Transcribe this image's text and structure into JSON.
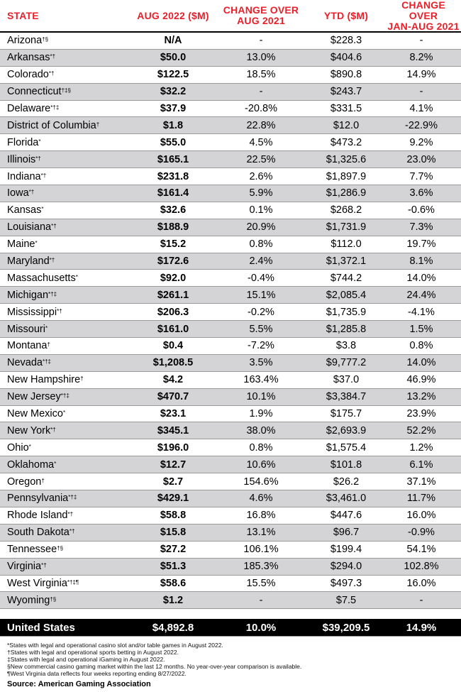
{
  "headers": {
    "state": "STATE",
    "aug": "AUG 2022 ($M)",
    "chg": "CHANGE OVER\nAUG 2021",
    "ytd": "YTD ($M)",
    "chgy": "CHANGE OVER\nJAN-AUG 2021"
  },
  "rows": [
    {
      "state": "Arizona",
      "sup": "†§",
      "aug": "N/A",
      "chg": "-",
      "ytd": "$228.3",
      "chgy": "-"
    },
    {
      "state": "Arkansas",
      "sup": "*†",
      "aug": "$50.0",
      "chg": "13.0%",
      "ytd": "$404.6",
      "chgy": "8.2%"
    },
    {
      "state": "Colorado",
      "sup": "*†",
      "aug": "$122.5",
      "chg": "18.5%",
      "ytd": "$890.8",
      "chgy": "14.9%"
    },
    {
      "state": "Connecticut",
      "sup": "†‡§",
      "aug": "$32.2",
      "chg": "-",
      "ytd": "$243.7",
      "chgy": "-"
    },
    {
      "state": "Delaware",
      "sup": "*†‡",
      "aug": "$37.9",
      "chg": "-20.8%",
      "ytd": "$331.5",
      "chgy": "4.1%"
    },
    {
      "state": "District of Columbia",
      "sup": "†",
      "aug": "$1.8",
      "chg": "22.8%",
      "ytd": "$12.0",
      "chgy": "-22.9%"
    },
    {
      "state": "Florida",
      "sup": "*",
      "aug": "$55.0",
      "chg": "4.5%",
      "ytd": "$473.2",
      "chgy": "9.2%"
    },
    {
      "state": "Illinois",
      "sup": "*†",
      "aug": "$165.1",
      "chg": "22.5%",
      "ytd": "$1,325.6",
      "chgy": "23.0%"
    },
    {
      "state": "Indiana",
      "sup": "*†",
      "aug": "$231.8",
      "chg": "2.6%",
      "ytd": "$1,897.9",
      "chgy": "7.7%"
    },
    {
      "state": "Iowa",
      "sup": "*†",
      "aug": "$161.4",
      "chg": "5.9%",
      "ytd": "$1,286.9",
      "chgy": "3.6%"
    },
    {
      "state": "Kansas",
      "sup": "*",
      "aug": "$32.6",
      "chg": "0.1%",
      "ytd": "$268.2",
      "chgy": "-0.6%"
    },
    {
      "state": "Louisiana",
      "sup": "*†",
      "aug": "$188.9",
      "chg": "20.9%",
      "ytd": "$1,731.9",
      "chgy": "7.3%"
    },
    {
      "state": "Maine",
      "sup": "*",
      "aug": "$15.2",
      "chg": "0.8%",
      "ytd": "$112.0",
      "chgy": "19.7%"
    },
    {
      "state": "Maryland",
      "sup": "*†",
      "aug": "$172.6",
      "chg": "2.4%",
      "ytd": "$1,372.1",
      "chgy": "8.1%"
    },
    {
      "state": "Massachusetts",
      "sup": "*",
      "aug": "$92.0",
      "chg": "-0.4%",
      "ytd": "$744.2",
      "chgy": "14.0%"
    },
    {
      "state": "Michigan",
      "sup": "*†‡",
      "aug": "$261.1",
      "chg": "15.1%",
      "ytd": "$2,085.4",
      "chgy": "24.4%"
    },
    {
      "state": "Mississippi",
      "sup": "*†",
      "aug": "$206.3",
      "chg": "-0.2%",
      "ytd": "$1,735.9",
      "chgy": "-4.1%"
    },
    {
      "state": "Missouri",
      "sup": "*",
      "aug": "$161.0",
      "chg": "5.5%",
      "ytd": "$1,285.8",
      "chgy": "1.5%"
    },
    {
      "state": "Montana",
      "sup": "†",
      "aug": "$0.4",
      "chg": "-7.2%",
      "ytd": "$3.8",
      "chgy": "0.8%"
    },
    {
      "state": "Nevada",
      "sup": "*†‡",
      "aug": "$1,208.5",
      "chg": "3.5%",
      "ytd": "$9,777.2",
      "chgy": "14.0%"
    },
    {
      "state": "New Hampshire",
      "sup": "†",
      "aug": "$4.2",
      "chg": "163.4%",
      "ytd": "$37.0",
      "chgy": "46.9%"
    },
    {
      "state": "New Jersey",
      "sup": "*†‡",
      "aug": "$470.7",
      "chg": "10.1%",
      "ytd": "$3,384.7",
      "chgy": "13.2%"
    },
    {
      "state": "New Mexico",
      "sup": "*",
      "aug": "$23.1",
      "chg": "1.9%",
      "ytd": "$175.7",
      "chgy": "23.9%"
    },
    {
      "state": "New York",
      "sup": "*†",
      "aug": "$345.1",
      "chg": "38.0%",
      "ytd": "$2,693.9",
      "chgy": "52.2%"
    },
    {
      "state": "Ohio",
      "sup": "*",
      "aug": "$196.0",
      "chg": "0.8%",
      "ytd": "$1,575.4",
      "chgy": "1.2%"
    },
    {
      "state": "Oklahoma",
      "sup": "*",
      "aug": "$12.7",
      "chg": "10.6%",
      "ytd": "$101.8",
      "chgy": "6.1%"
    },
    {
      "state": "Oregon",
      "sup": "†",
      "aug": "$2.7",
      "chg": "154.6%",
      "ytd": "$26.2",
      "chgy": "37.1%"
    },
    {
      "state": "Pennsylvania",
      "sup": "*†‡",
      "aug": "$429.1",
      "chg": "4.6%",
      "ytd": "$3,461.0",
      "chgy": "11.7%"
    },
    {
      "state": "Rhode Island",
      "sup": "*†",
      "aug": "$58.8",
      "chg": "16.8%",
      "ytd": "$447.6",
      "chgy": "16.0%"
    },
    {
      "state": "South Dakota",
      "sup": "*†",
      "aug": "$15.8",
      "chg": "13.1%",
      "ytd": "$96.7",
      "chgy": "-0.9%"
    },
    {
      "state": "Tennessee",
      "sup": "†§",
      "aug": "$27.2",
      "chg": "106.1%",
      "ytd": "$199.4",
      "chgy": "54.1%"
    },
    {
      "state": "Virginia",
      "sup": "*†",
      "aug": "$51.3",
      "chg": "185.3%",
      "ytd": "$294.0",
      "chgy": "102.8%"
    },
    {
      "state": "West Virginia",
      "sup": "*†‡¶",
      "aug": "$58.6",
      "chg": "15.5%",
      "ytd": "$497.3",
      "chgy": "16.0%"
    },
    {
      "state": "Wyoming",
      "sup": "†§",
      "aug": "$1.2",
      "chg": "-",
      "ytd": "$7.5",
      "chgy": "-"
    }
  ],
  "total": {
    "state": "United States",
    "aug": "$4,892.8",
    "chg": "10.0%",
    "ytd": "$39,209.5",
    "chgy": "14.9%"
  },
  "notes": [
    "*States with legal and operational casino slot and/or table games in August 2022.",
    "†States with legal and operational sports betting in August 2022.",
    "‡States with legal and operational iGaming in August 2022.",
    "§New commercial casino gaming market within the last 12 months. No year-over-year comparison is available.",
    "¶West Virginia data reflects four weeks reporting ending 8/27/2022."
  ],
  "source": "Source: American Gaming Association"
}
